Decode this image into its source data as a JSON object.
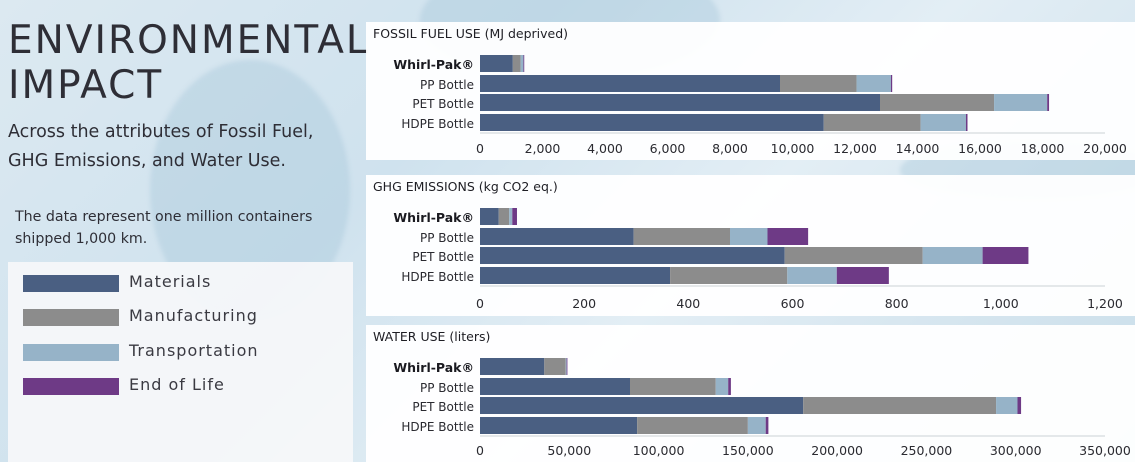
{
  "heading": {
    "title_lines": [
      "ENVIRONMENTAL",
      "IMPACT"
    ],
    "subtitle": "Across the attributes of Fossil Fuel, GHG Emissions, and Water Use.",
    "note": "The data represent one million containers shipped 1,000 km."
  },
  "legend": {
    "items": [
      {
        "label": "Materials",
        "color": "#4a5f82"
      },
      {
        "label": "Manufacturing",
        "color": "#8c8c8c"
      },
      {
        "label": "Transportation",
        "color": "#96b3c8"
      },
      {
        "label": "End of Life",
        "color": "#6e3a86"
      }
    ]
  },
  "chart_data": [
    {
      "type": "bar",
      "orientation": "horizontal",
      "stacked": true,
      "title": "FOSSIL FUEL USE (MJ deprived)",
      "categories": [
        "Whirl-Pak®",
        "PP Bottle",
        "PET Bottle",
        "HDPE Bottle"
      ],
      "series": [
        {
          "name": "Materials",
          "values": [
            1050,
            9600,
            12800,
            11000
          ]
        },
        {
          "name": "Manufacturing",
          "values": [
            250,
            2450,
            3650,
            3100
          ]
        },
        {
          "name": "Transportation",
          "values": [
            90,
            1100,
            1700,
            1450
          ]
        },
        {
          "name": "End of Life",
          "values": [
            10,
            40,
            60,
            50
          ]
        }
      ],
      "xlim": [
        0,
        20000
      ],
      "xticks": [
        "0",
        "2,000",
        "4,000",
        "6,000",
        "8,000",
        "10,000",
        "12,000",
        "14,000",
        "16,000",
        "18,000",
        "20,000"
      ],
      "xtick_values": [
        0,
        2000,
        4000,
        6000,
        8000,
        10000,
        12000,
        14000,
        16000,
        18000,
        20000
      ]
    },
    {
      "type": "bar",
      "orientation": "horizontal",
      "stacked": true,
      "title": "GHG EMISSIONS (kg CO2 eq.)",
      "categories": [
        "Whirl-Pak®",
        "PP Bottle",
        "PET Bottle",
        "HDPE Bottle"
      ],
      "series": [
        {
          "name": "Materials",
          "values": [
            36,
            295,
            585,
            365
          ]
        },
        {
          "name": "Manufacturing",
          "values": [
            20,
            185,
            265,
            225
          ]
        },
        {
          "name": "Transportation",
          "values": [
            6,
            72,
            115,
            95
          ]
        },
        {
          "name": "End of Life",
          "values": [
            9,
            78,
            88,
            100
          ]
        }
      ],
      "xlim": [
        0,
        1200
      ],
      "xticks": [
        "0",
        "200",
        "400",
        "600",
        "800",
        "1,000",
        "1,200"
      ],
      "xtick_values": [
        0,
        200,
        400,
        600,
        800,
        1000,
        1200
      ]
    },
    {
      "type": "bar",
      "orientation": "horizontal",
      "stacked": true,
      "title": "WATER USE (liters)",
      "categories": [
        "Whirl-Pak®",
        "PP Bottle",
        "PET Bottle",
        "HDPE Bottle"
      ],
      "series": [
        {
          "name": "Materials",
          "values": [
            36000,
            84000,
            181000,
            88000
          ]
        },
        {
          "name": "Manufacturing",
          "values": [
            12000,
            48000,
            108000,
            62000
          ]
        },
        {
          "name": "Transportation",
          "values": [
            500,
            7000,
            12000,
            10000
          ]
        },
        {
          "name": "End of Life",
          "values": [
            200,
            1500,
            2000,
            1500
          ]
        }
      ],
      "xlim": [
        0,
        350000
      ],
      "xticks": [
        "0",
        "50,000",
        "100,000",
        "150,000",
        "200,000",
        "250,000",
        "300,000",
        "350,000"
      ],
      "xtick_values": [
        0,
        50000,
        100000,
        150000,
        200000,
        250000,
        300000,
        350000
      ]
    }
  ]
}
